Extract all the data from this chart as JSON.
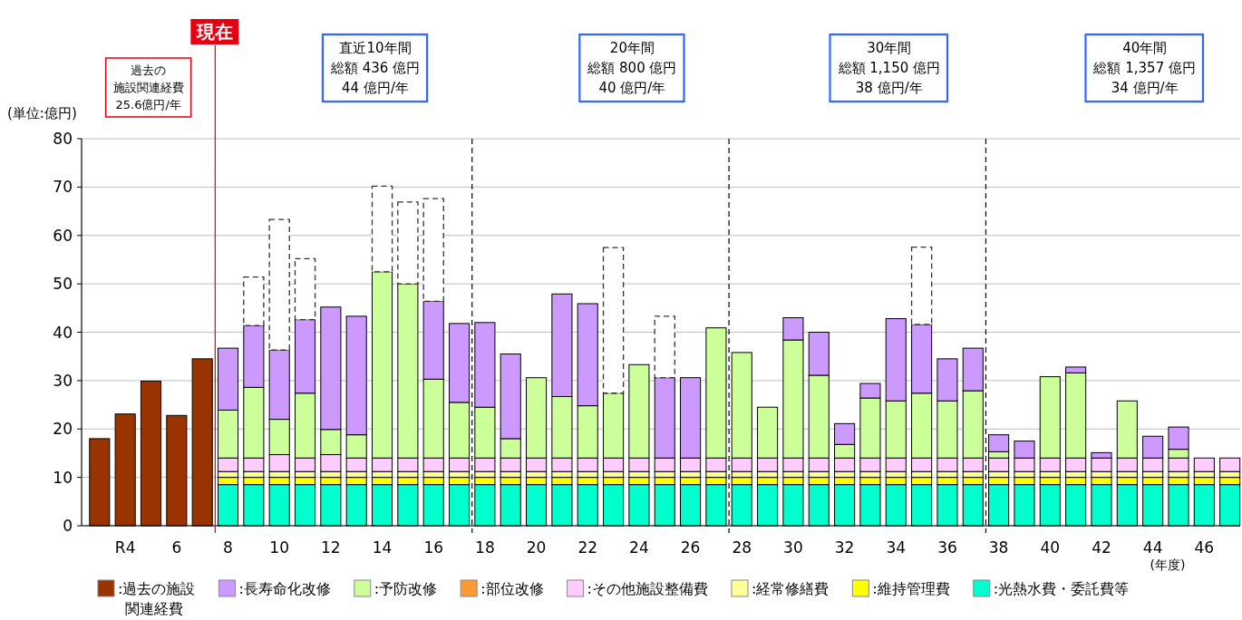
{
  "chart_data": {
    "type": "bar",
    "stacked": true,
    "ylabel": "(単位:億円)",
    "xlabel": "(年度)",
    "x": [
      3,
      4,
      5,
      6,
      7,
      8,
      9,
      10,
      11,
      12,
      13,
      14,
      15,
      16,
      17,
      18,
      19,
      20,
      21,
      22,
      23,
      24,
      25,
      26,
      27,
      28,
      29,
      30,
      31,
      32,
      33,
      34,
      35,
      36,
      37,
      38,
      39,
      40,
      41,
      42,
      43,
      44,
      45,
      46,
      47
    ],
    "xlim": [
      2.3,
      47.4
    ],
    "xticks": [
      {
        "value": 4,
        "label": "R4"
      },
      6,
      8,
      10,
      12,
      14,
      16,
      18,
      20,
      22,
      24,
      26,
      28,
      30,
      32,
      34,
      36,
      38,
      40,
      42,
      44,
      46
    ],
    "ylim": [
      0,
      80
    ],
    "yticks": [
      0,
      10,
      20,
      30,
      40,
      50,
      60,
      70,
      80
    ],
    "grid": "y",
    "legend": "bottom",
    "ref_lines": [
      {
        "axis": "x",
        "value": 7.5,
        "label": "現在",
        "color": "#e60012",
        "line_style": "solid"
      },
      {
        "axis": "x",
        "value": 17.5,
        "color": "#000000",
        "line_style": "dashed"
      },
      {
        "axis": "x",
        "value": 27.5,
        "color": "#000000",
        "line_style": "dashed"
      },
      {
        "axis": "x",
        "value": 37.5,
        "color": "#000000",
        "line_style": "dashed"
      }
    ],
    "annotations": [
      "過去の",
      "施設関連経費",
      "25.6億円/年",
      "直近10年間",
      "総額 436 億円",
      "44 億円/年",
      "20年間",
      "総額 800 億円",
      "40 億円/年",
      "30年間",
      "総額 1,150 億円",
      "38 億円/年",
      "40年間",
      "総額 1,357 億円",
      "34 億円/年"
    ],
    "series": [
      {
        "name": ":光熱水費・委託費等",
        "color": "#00ffcc",
        "values": [
          null,
          null,
          null,
          null,
          null,
          8.5,
          8.5,
          8.5,
          8.5,
          8.5,
          8.5,
          8.5,
          8.5,
          8.5,
          8.5,
          8.5,
          8.5,
          8.5,
          8.5,
          8.5,
          8.5,
          8.5,
          8.5,
          8.5,
          8.5,
          8.5,
          8.5,
          8.5,
          8.5,
          8.5,
          8.5,
          8.5,
          8.5,
          8.5,
          8.5,
          8.5,
          8.5,
          8.5,
          8.5,
          8.5,
          8.5,
          8.5,
          8.5,
          8.5,
          8.5
        ]
      },
      {
        "name": ":維持管理費",
        "color": "#ffff00",
        "values": [
          null,
          null,
          null,
          null,
          null,
          1.5,
          1.5,
          1.5,
          1.5,
          1.5,
          1.5,
          1.5,
          1.5,
          1.5,
          1.5,
          1.5,
          1.5,
          1.5,
          1.5,
          1.5,
          1.5,
          1.5,
          1.5,
          1.5,
          1.5,
          1.5,
          1.5,
          1.5,
          1.5,
          1.5,
          1.5,
          1.5,
          1.5,
          1.5,
          1.5,
          1.5,
          1.5,
          1.5,
          1.5,
          1.5,
          1.5,
          1.5,
          1.5,
          1.5,
          1.5
        ]
      },
      {
        "name": ":経常修繕費",
        "color": "#ffff99",
        "values": [
          null,
          null,
          null,
          null,
          null,
          1.2,
          1.2,
          1.2,
          1.2,
          1.2,
          1.2,
          1.2,
          1.2,
          1.2,
          1.2,
          1.2,
          1.2,
          1.2,
          1.2,
          1.2,
          1.2,
          1.2,
          1.2,
          1.2,
          1.2,
          1.2,
          1.2,
          1.2,
          1.2,
          1.2,
          1.2,
          1.2,
          1.2,
          1.2,
          1.2,
          1.2,
          1.2,
          1.2,
          1.2,
          1.2,
          1.2,
          1.2,
          1.2,
          1.2,
          1.2
        ]
      },
      {
        "name": ":その他施設整備費",
        "color": "#ffccff",
        "values": [
          null,
          null,
          null,
          null,
          null,
          2.8,
          2.8,
          3.5,
          2.8,
          3.5,
          2.8,
          2.8,
          2.8,
          2.8,
          2.8,
          2.8,
          2.8,
          2.8,
          2.8,
          2.8,
          2.8,
          2.8,
          2.8,
          2.8,
          2.8,
          2.8,
          2.8,
          2.8,
          2.8,
          2.8,
          2.8,
          2.8,
          2.8,
          2.8,
          2.8,
          2.8,
          2.8,
          2.8,
          2.8,
          2.8,
          2.8,
          2.8,
          2.8,
          2.8,
          2.8
        ]
      },
      {
        "name": ":部位改修",
        "color": "#ff9933",
        "values": [
          null,
          null,
          null,
          null,
          null,
          null,
          null,
          null,
          null,
          null,
          null,
          null,
          null,
          null,
          null,
          null,
          null,
          null,
          null,
          null,
          null,
          null,
          null,
          null,
          null,
          null,
          null,
          null,
          null,
          null,
          null,
          null,
          null,
          null,
          null,
          null,
          null,
          null,
          null,
          null,
          null,
          null,
          null,
          null,
          null
        ]
      },
      {
        "name": ":予防改修",
        "color": "#ccff99",
        "values": [
          null,
          null,
          null,
          null,
          null,
          9.9,
          14.6,
          7.3,
          13.4,
          5.2,
          4.8,
          38.5,
          36.0,
          16.3,
          11.5,
          10.5,
          4.0,
          16.6,
          12.7,
          10.8,
          13.4,
          19.3,
          null,
          null,
          26.9,
          21.8,
          10.5,
          24.4,
          17.1,
          2.8,
          12.4,
          11.8,
          13.4,
          11.8,
          13.9,
          1.3,
          null,
          16.8,
          17.6,
          null,
          11.8,
          null,
          1.8,
          null,
          null
        ]
      },
      {
        "name": ":長寿命化改修",
        "color": "#cc99ff",
        "values": [
          null,
          null,
          null,
          null,
          null,
          12.8,
          12.8,
          14.3,
          15.2,
          25.3,
          24.5,
          null,
          null,
          16.1,
          16.3,
          17.5,
          17.5,
          null,
          21.2,
          21.1,
          null,
          null,
          16.6,
          16.6,
          null,
          null,
          null,
          4.6,
          8.9,
          4.3,
          3.0,
          17.0,
          14.2,
          8.7,
          8.8,
          3.5,
          3.5,
          null,
          1.2,
          1.1,
          null,
          4.5,
          4.6,
          null,
          null
        ]
      },
      {
        "name": ":過去の施設関連経費",
        "color": "#993300",
        "values": [
          18.0,
          23.1,
          29.9,
          22.8,
          34.5,
          null,
          null,
          null,
          null,
          null,
          null,
          null,
          null,
          null,
          null,
          null,
          null,
          null,
          null,
          null,
          null,
          null,
          null,
          null,
          null,
          null,
          null,
          null,
          null,
          null,
          null,
          null,
          null,
          null,
          null,
          null,
          null,
          null,
          null,
          null,
          null,
          null,
          null,
          null,
          null
        ]
      },
      {
        "color": "#ffffff",
        "line_style": "dashed",
        "values": [
          null,
          null,
          null,
          null,
          null,
          null,
          10.0,
          27.0,
          12.6,
          null,
          null,
          17.7,
          16.9,
          21.2,
          null,
          null,
          null,
          null,
          null,
          null,
          30.1,
          null,
          12.7,
          null,
          null,
          null,
          null,
          null,
          null,
          null,
          null,
          null,
          16.0,
          null,
          null,
          null,
          null,
          null,
          null,
          null,
          null,
          null,
          null,
          null,
          null
        ]
      }
    ]
  }
}
